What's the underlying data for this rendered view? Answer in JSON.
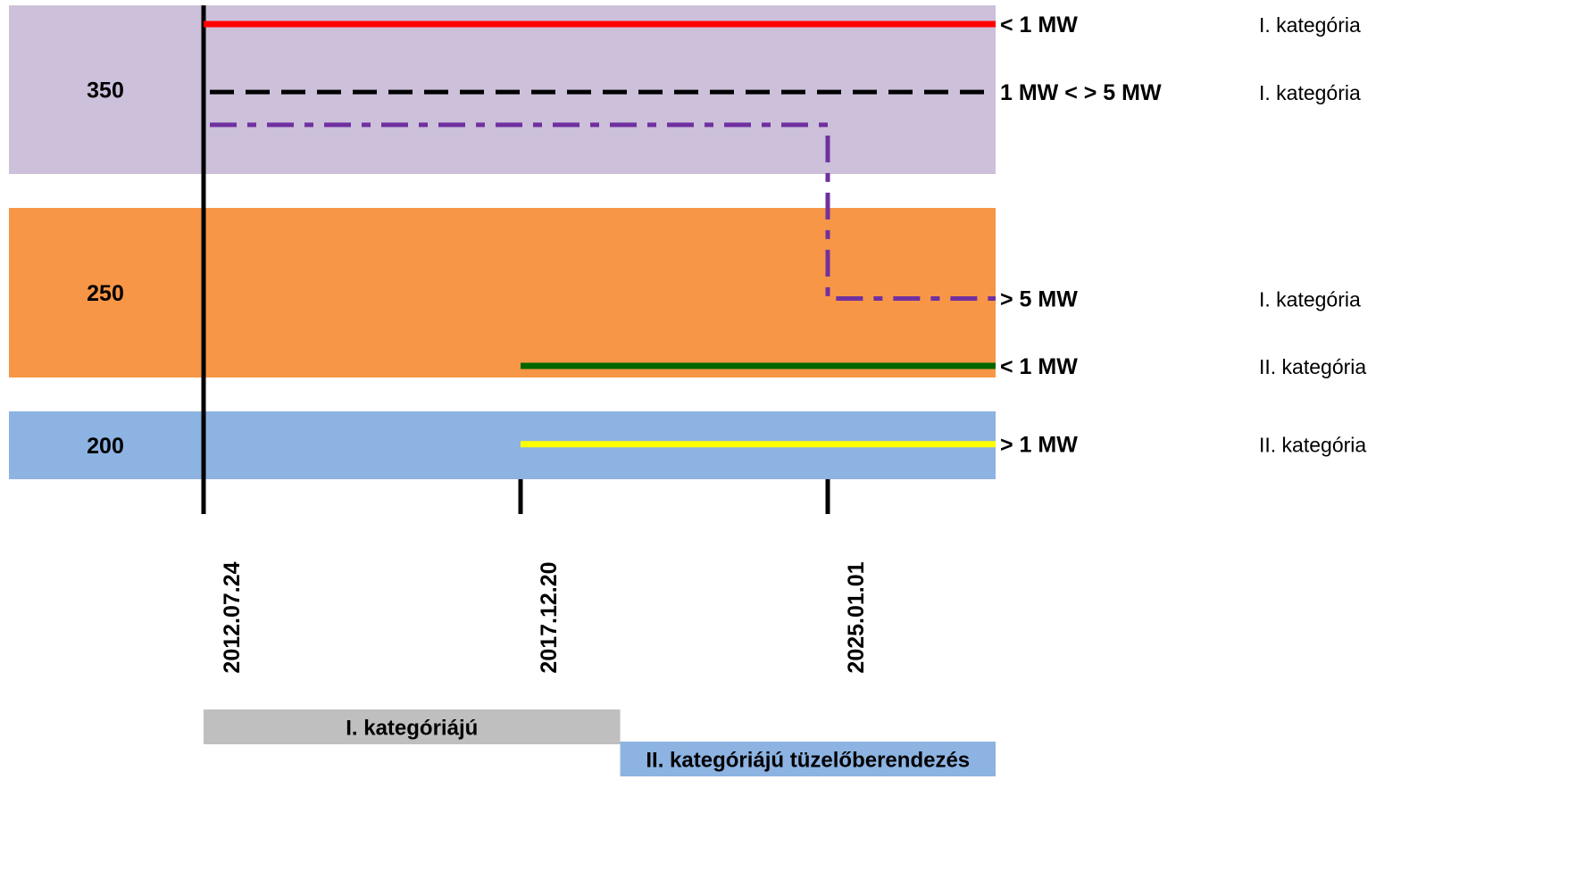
{
  "chart_data": {
    "type": "line",
    "title": "",
    "xlabel": "",
    "ylabel": "",
    "x_ticks": [
      "2012.07.24",
      "2017.12.20",
      "2025.01.01"
    ],
    "x_end": "2031.06.01",
    "ylim": [
      180,
      380
    ],
    "bands": [
      {
        "label": "350",
        "y_from": 308,
        "y_to": 380,
        "color": "#ccc0da"
      },
      {
        "label": "250",
        "y_from": 223,
        "y_to": 296,
        "color": "#f79646"
      },
      {
        "label": "200",
        "y_from": 180,
        "y_to": 209,
        "color": "#8db3e2"
      }
    ],
    "series": [
      {
        "label": "< 1 MW",
        "category": "I. kategória",
        "color": "#ff0000",
        "dash": "solid",
        "points": [
          [
            "2012.07.24",
            372
          ],
          [
            "2031.06.01",
            372
          ]
        ]
      },
      {
        "label": "1 MW < > 5 MW",
        "category": "I. kategória",
        "color": "#000000",
        "dash": "dashed",
        "points": [
          [
            "2012.07.24",
            343
          ],
          [
            "2031.06.01",
            343
          ]
        ]
      },
      {
        "label": "> 5 MW",
        "category": "I. kategória",
        "color": "#7030a0",
        "dash": "dashdot",
        "points": [
          [
            "2012.07.24",
            329
          ],
          [
            "2025.01.01",
            329
          ],
          [
            "2025.01.01",
            257
          ],
          [
            "2031.06.01",
            257
          ]
        ]
      },
      {
        "label": "< 1 MW",
        "category": "II. kategória",
        "color": "#006600",
        "dash": "solid",
        "points": [
          [
            "2017.12.20",
            228
          ],
          [
            "2031.06.01",
            228
          ]
        ]
      },
      {
        "label": "> 1 MW",
        "category": "II. kategória",
        "color": "#ffff00",
        "dash": "solid",
        "points": [
          [
            "2017.12.20",
            195
          ],
          [
            "2031.06.01",
            195
          ]
        ]
      }
    ],
    "period_bars": [
      {
        "label": "I. kategóriájú",
        "from": "2012.07.24",
        "to": "2020.04.01",
        "color": "#bfbfbf"
      },
      {
        "label": "II. kategóriájú tüzelőberendezés",
        "from": "2020.04.01",
        "to": "2031.06.01",
        "color": "#8db3e2"
      }
    ]
  }
}
